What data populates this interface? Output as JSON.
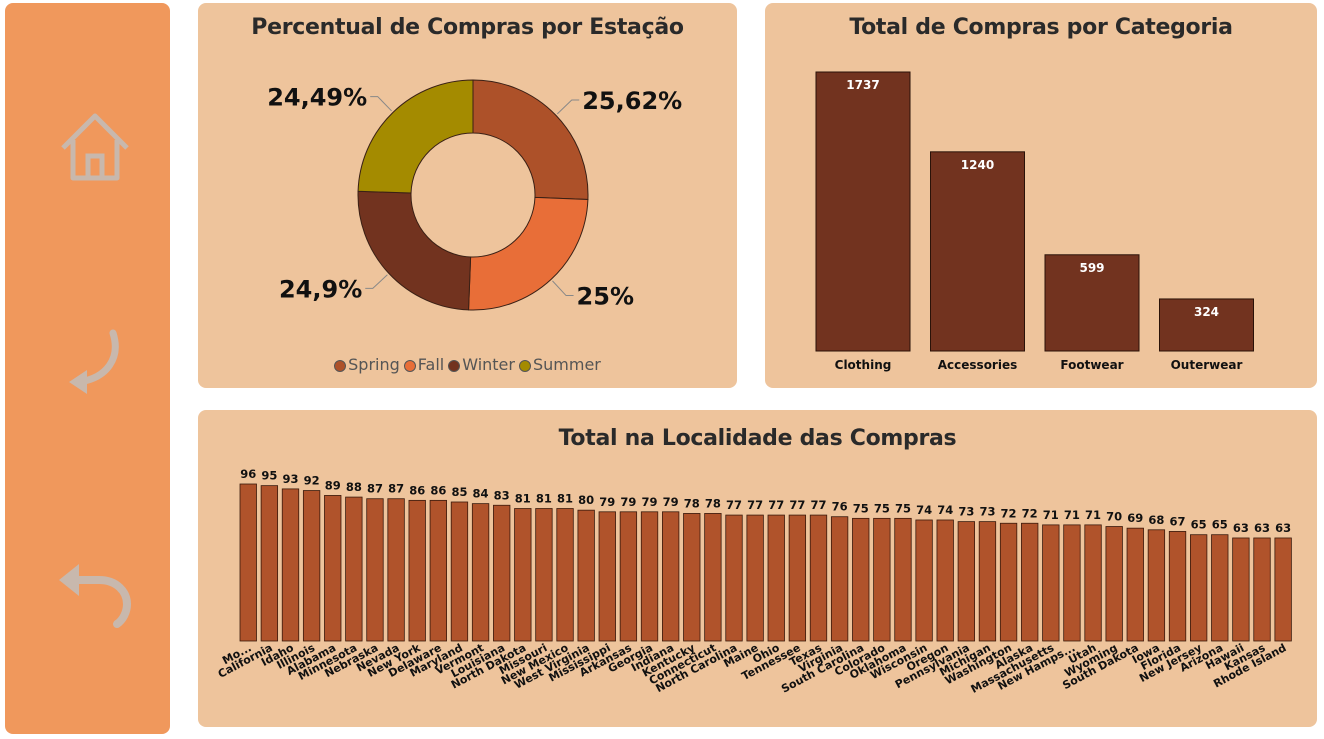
{
  "colors": {
    "sidebar": "#f0985c",
    "panel": "#eec49c",
    "bar_category": "#72331f",
    "bar_state": "#b0532b",
    "icon": "#c8b8ad"
  },
  "sidebar": {
    "icons": [
      "home-icon",
      "back-arrow-icon",
      "undo-icon"
    ]
  },
  "chart_data": [
    {
      "type": "pie",
      "variant": "donut",
      "title": "Percentual de Compras por Estação",
      "categories": [
        "Spring",
        "Fall",
        "Winter",
        "Summer"
      ],
      "values": [
        25.62,
        25,
        24.9,
        24.49
      ],
      "value_labels": [
        "25,62%",
        "25%",
        "24,9%",
        "24,49%"
      ],
      "colors": [
        "#ad5129",
        "#e86e38",
        "#72331f",
        "#a48b00"
      ],
      "legend": "bottom"
    },
    {
      "type": "bar",
      "title": "Total de Compras por Categoria",
      "categories": [
        "Clothing",
        "Accessories",
        "Footwear",
        "Outerwear"
      ],
      "values": [
        1737,
        1240,
        599,
        324
      ],
      "ylim": [
        0,
        1737
      ]
    },
    {
      "type": "bar",
      "title": "Total na Localidade das Compras",
      "categories": [
        "Mo...",
        "California",
        "Idaho",
        "Illinois",
        "Alabama",
        "Minnesota",
        "Nebraska",
        "Nevada",
        "New York",
        "Delaware",
        "Maryland",
        "Vermont",
        "Louisiana",
        "North Dakota",
        "Missouri",
        "New Mexico",
        "West Virginia",
        "Mississippi",
        "Arkansas",
        "Georgia",
        "Indiana",
        "Kentucky",
        "Connecticut",
        "North Carolina",
        "Maine",
        "Ohio",
        "Tennessee",
        "Texas",
        "Virginia",
        "South Carolina",
        "Colorado",
        "Oklahoma",
        "Wisconsin",
        "Oregon",
        "Pennsylvania",
        "Michigan",
        "Washington",
        "Alaska",
        "Massachusetts",
        "New Hamps...",
        "Utah",
        "Wyoming",
        "South Dakota",
        "Iowa",
        "Florida",
        "New Jersey",
        "Arizona",
        "Hawaii",
        "Kansas",
        "Rhode Island"
      ],
      "values": [
        96,
        95,
        93,
        92,
        89,
        88,
        87,
        87,
        86,
        86,
        85,
        84,
        83,
        81,
        81,
        81,
        80,
        79,
        79,
        79,
        79,
        78,
        78,
        77,
        77,
        77,
        77,
        77,
        76,
        75,
        75,
        75,
        74,
        74,
        73,
        73,
        72,
        72,
        71,
        71,
        71,
        70,
        69,
        68,
        67,
        65,
        65,
        63,
        63,
        63
      ],
      "ylim": [
        0,
        96
      ]
    }
  ]
}
